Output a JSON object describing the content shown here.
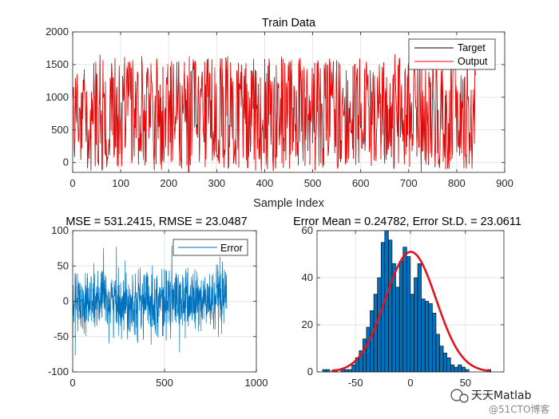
{
  "chart_data": [
    {
      "type": "line",
      "title": "Train Data",
      "xlabel": "Sample Index",
      "ylabel": "",
      "xlim": [
        0,
        900
      ],
      "ylim": [
        -150,
        2000
      ],
      "xticks": [
        0,
        100,
        200,
        300,
        400,
        500,
        600,
        700,
        800,
        900
      ],
      "yticks": [
        0,
        500,
        1000,
        1500,
        2000
      ],
      "grid": true,
      "legend_position": "top-right",
      "sample_count": 840,
      "series": [
        {
          "name": "Target",
          "color": "#000000",
          "values_range": [
            -150,
            1650
          ]
        },
        {
          "name": "Output",
          "color": "#ff0000",
          "values_range": [
            -150,
            1650
          ]
        }
      ]
    },
    {
      "type": "line",
      "title": "MSE = 531.2415, RMSE = 23.0487",
      "xlabel": "",
      "ylabel": "",
      "xlim": [
        0,
        1000
      ],
      "ylim": [
        -100,
        100
      ],
      "xticks": [
        0,
        500,
        1000
      ],
      "yticks": [
        -100,
        -50,
        0,
        50,
        100
      ],
      "grid": true,
      "legend_position": "top-right",
      "series": [
        {
          "name": "Error",
          "color": "#0072bd",
          "sample_count": 840,
          "std": 23.06,
          "mean": 0.25
        }
      ]
    },
    {
      "type": "histogram",
      "title": "Error Mean = 0.24782, Error St.D. = 23.0611",
      "xlabel": "",
      "ylabel": "",
      "xlim": [
        -85,
        85
      ],
      "ylim": [
        0,
        60
      ],
      "xticks": [
        -50,
        0,
        50
      ],
      "yticks": [
        0,
        20,
        40,
        60
      ],
      "grid": true,
      "bin_start": -80,
      "bin_width": 3.33,
      "counts": [
        1,
        1,
        0,
        1,
        0,
        1,
        1,
        1,
        3,
        6,
        9,
        14,
        19,
        26,
        33,
        40,
        55,
        60,
        56,
        46,
        36,
        47,
        53,
        49,
        33,
        40,
        46,
        31,
        30,
        29,
        25,
        16,
        11,
        8,
        6,
        3,
        2,
        3,
        2,
        1,
        0,
        0,
        0,
        0,
        0,
        1
      ],
      "fit_curve": {
        "name": "Normal fit",
        "color": "#e0141e",
        "mean": 0.24782,
        "std": 23.0611,
        "peak": 51
      },
      "bar_color": "#0072bd"
    }
  ],
  "watermark": {
    "channel": "天天Matlab",
    "site": "@51CTO博客"
  }
}
